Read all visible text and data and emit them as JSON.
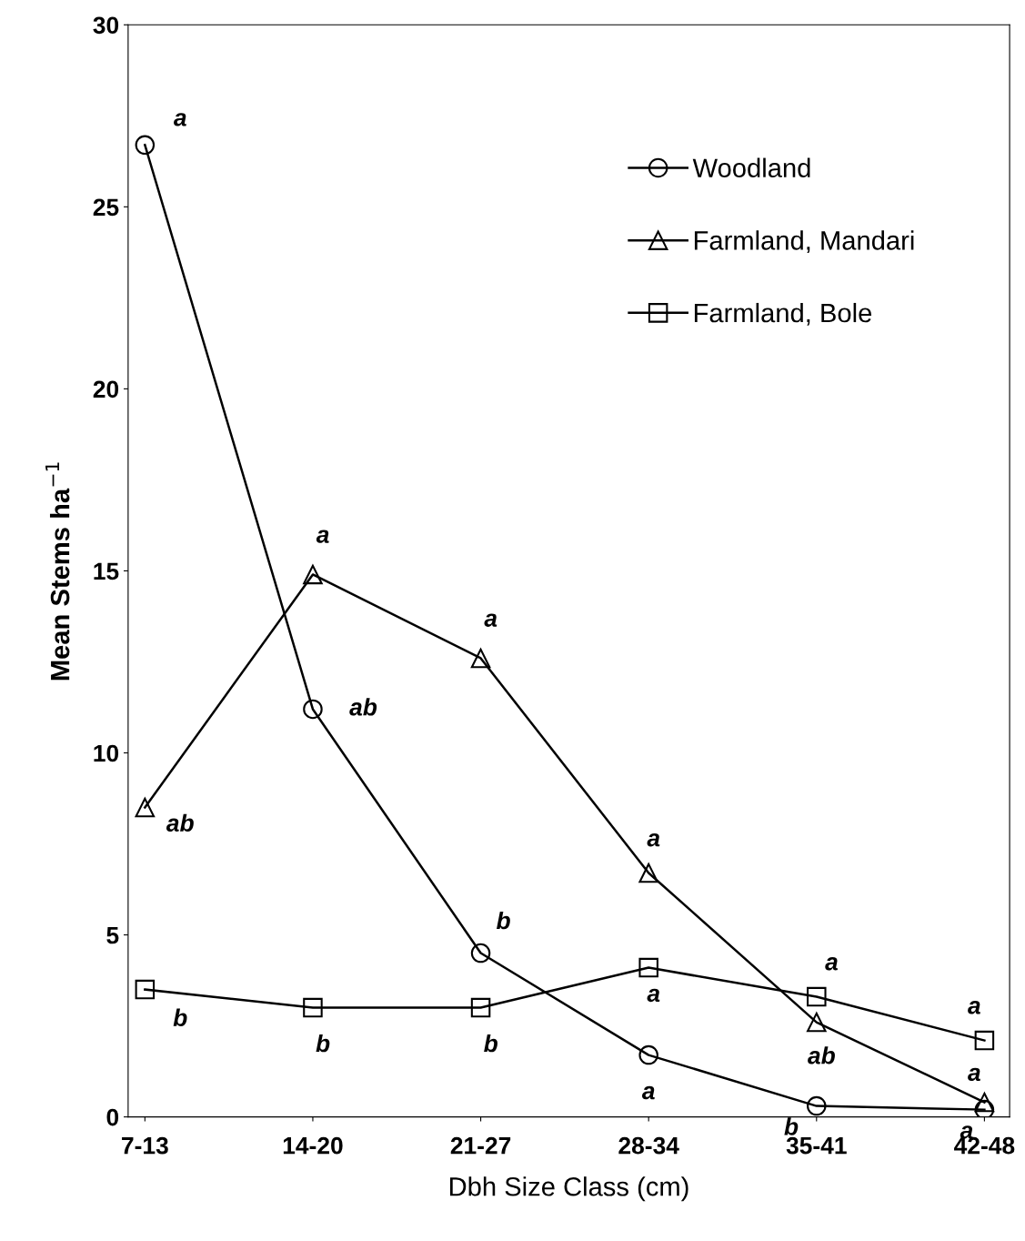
{
  "chart_data": {
    "type": "line",
    "xlabel": "Dbh Size Class (cm)",
    "ylabel": "Mean Stems ha$^{−1}$",
    "categories": [
      "7-13",
      "14-20",
      "21-27",
      "28-34",
      "35-41",
      "42-48"
    ],
    "series": [
      {
        "name": "Woodland",
        "color": "#000000",
        "marker": "circle",
        "values": [
          26.7,
          11.2,
          4.5,
          1.7,
          0.3,
          0.2
        ]
      },
      {
        "name": "Farmland, Mandari",
        "color": "#000000",
        "marker": "triangle",
        "values": [
          8.5,
          14.9,
          12.6,
          6.7,
          2.6,
          0.4
        ]
      },
      {
        "name": "Farmland, Bole",
        "color": "#000000",
        "marker": "square",
        "values": [
          3.5,
          3.0,
          3.0,
          4.1,
          3.3,
          2.1
        ]
      }
    ],
    "ylim": [
      0,
      30
    ],
    "yticks": [
      0,
      5,
      10,
      15,
      20,
      25,
      30
    ],
    "grid": false,
    "legend": "top right",
    "line_style": "solid",
    "annotations": [
      {
        "text": "a",
        "x": "7-13",
        "y": 26.7
      },
      {
        "text": "ab",
        "x": "14-20",
        "y": 11.2
      },
      {
        "text": "b",
        "x": "21-27",
        "y": 4.5
      },
      {
        "text": "a",
        "x": "28-34",
        "y": 1.7
      },
      {
        "text": "b",
        "x": "35-41",
        "y": 0.3
      },
      {
        "text": "a",
        "x": "42-48",
        "y": 0.2
      },
      {
        "text": "ab",
        "x": "7-13",
        "y": 8.5
      },
      {
        "text": "a",
        "x": "14-20",
        "y": 14.9
      },
      {
        "text": "a",
        "x": "21-27",
        "y": 12.6
      },
      {
        "text": "a",
        "x": "28-34",
        "y": 6.7
      },
      {
        "text": "ab",
        "x": "35-41",
        "y": 2.6
      },
      {
        "text": "a",
        "x": "42-48",
        "y": 0.4
      },
      {
        "text": "b",
        "x": "7-13",
        "y": 3.5
      },
      {
        "text": "b",
        "x": "14-20",
        "y": 3.0
      },
      {
        "text": "b",
        "x": "21-27",
        "y": 3.0
      },
      {
        "text": "a",
        "x": "28-34",
        "y": 4.1
      },
      {
        "text": "a",
        "x": "35-41",
        "y": 3.3
      },
      {
        "text": "a",
        "x": "42-48",
        "y": 2.1
      }
    ]
  }
}
